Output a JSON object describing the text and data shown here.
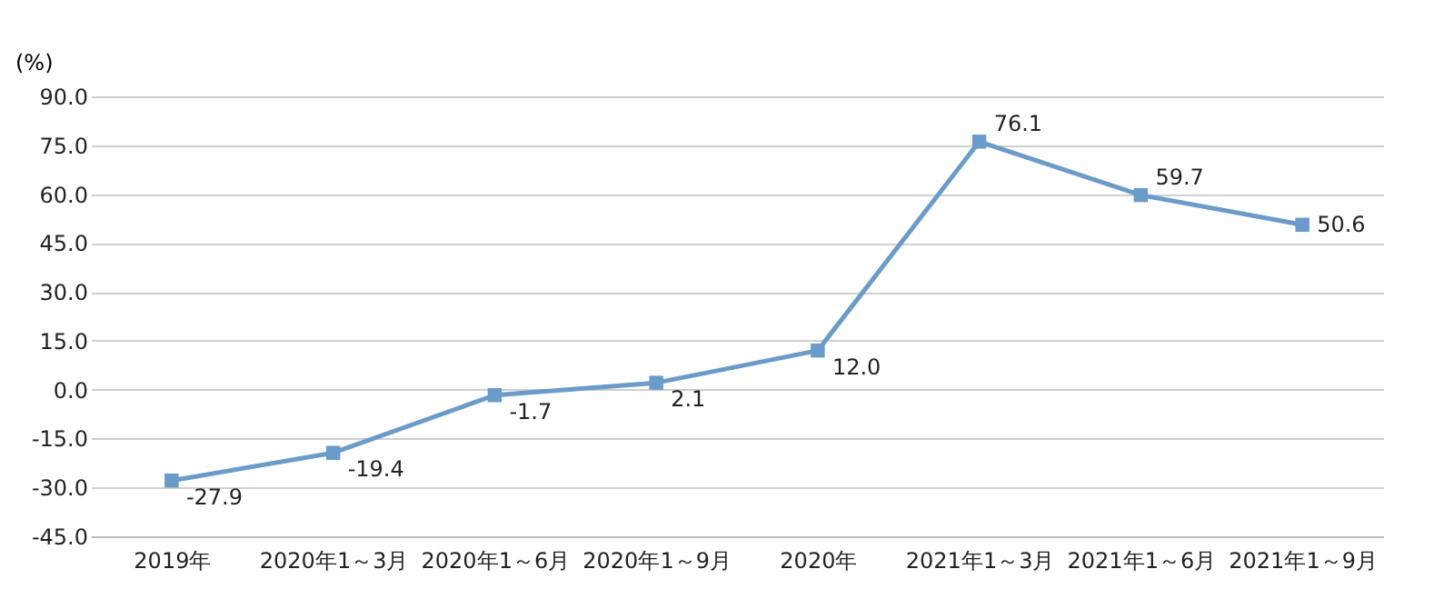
{
  "chart_data": {
    "type": "line",
    "ylabel": "(%)",
    "categories": [
      "2019年",
      "2020年1～3月",
      "2020年1～6月",
      "2020年1～9月",
      "2020年",
      "2021年1～3月",
      "2021年1～6月",
      "2021年1～9月"
    ],
    "series": [
      {
        "color": "#6b9bc8",
        "values": [
          -27.9,
          -19.4,
          -1.7,
          2.1,
          12.0,
          76.1,
          59.7,
          50.6
        ],
        "value_labels": [
          "-27.9",
          "-19.4",
          "-1.7",
          "2.1",
          "12.0",
          "76.1",
          "59.7",
          "50.6"
        ]
      }
    ],
    "ylim": [
      -45,
      90
    ],
    "yticks": [
      {
        "value": -45,
        "label": "-45.0"
      },
      {
        "value": -30,
        "label": "-30.0"
      },
      {
        "value": -15,
        "label": "-15.0"
      },
      {
        "value": 0,
        "label": "0.0"
      },
      {
        "value": 15,
        "label": "15.0"
      },
      {
        "value": 30,
        "label": "30.0"
      },
      {
        "value": 45,
        "label": "45.0"
      },
      {
        "value": 60,
        "label": "60.0"
      },
      {
        "value": 75,
        "label": "75.0"
      },
      {
        "value": 90,
        "label": "90.0"
      }
    ],
    "grid": "y",
    "marker": "square",
    "line_style": "solid",
    "legend": false
  }
}
